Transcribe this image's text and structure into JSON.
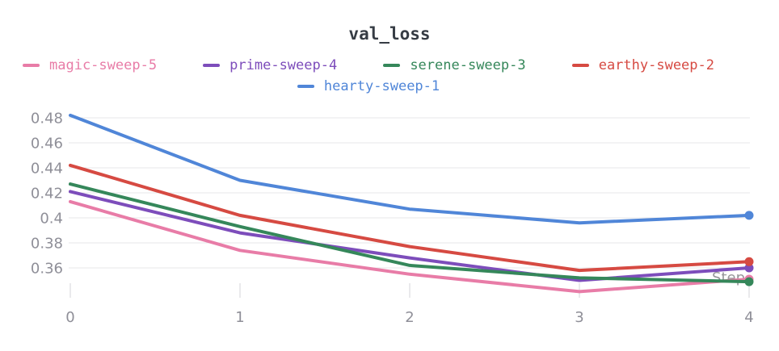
{
  "chart_data": {
    "type": "line",
    "title": "val_loss",
    "xlabel": "Step",
    "x": [
      0,
      1,
      2,
      3,
      4
    ],
    "xtick_labels": [
      "0",
      "1",
      "2",
      "3",
      "4"
    ],
    "yticks": [
      {
        "v": 0.48,
        "label": "0.48"
      },
      {
        "v": 0.46,
        "label": "0.46"
      },
      {
        "v": 0.44,
        "label": "0.44"
      },
      {
        "v": 0.42,
        "label": "0.42"
      },
      {
        "v": 0.4,
        "label": "0.4"
      },
      {
        "v": 0.38,
        "label": "0.38"
      },
      {
        "v": 0.36,
        "label": "0.36"
      }
    ],
    "ylim": [
      0.335,
      0.485
    ],
    "grid": "horizontal-only",
    "legend_position": "top",
    "series": [
      {
        "name": "magic-sweep-5",
        "color": "#e87ca7",
        "values": [
          0.413,
          0.374,
          0.355,
          0.341,
          0.351
        ]
      },
      {
        "name": "prime-sweep-4",
        "color": "#7d4dbb",
        "values": [
          0.421,
          0.388,
          0.368,
          0.35,
          0.36
        ]
      },
      {
        "name": "serene-sweep-3",
        "color": "#35875a",
        "values": [
          0.427,
          0.393,
          0.362,
          0.352,
          0.349
        ]
      },
      {
        "name": "earthy-sweep-2",
        "color": "#d64a42",
        "values": [
          0.442,
          0.402,
          0.377,
          0.358,
          0.365
        ]
      },
      {
        "name": "hearty-sweep-1",
        "color": "#5086d8",
        "values": [
          0.482,
          0.43,
          0.407,
          0.396,
          0.402
        ]
      }
    ],
    "colors": {
      "grid": "#e7e7ea",
      "tick": "#e3e3e6",
      "axis_text": "#8f8f98",
      "step_text": "#97979b",
      "title_text": "#363c44"
    }
  }
}
